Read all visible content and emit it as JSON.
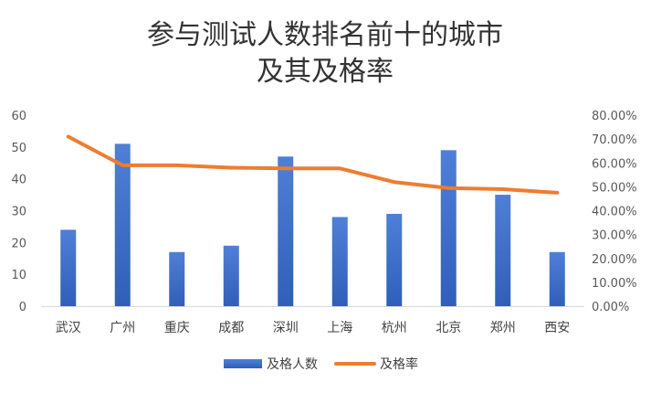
{
  "chart_data": {
    "type": "bar",
    "title_lines": [
      "参与测试人数排名前十的城市",
      "及其及格率"
    ],
    "categories": [
      "武汉",
      "广州",
      "重庆",
      "成都",
      "深圳",
      "上海",
      "杭州",
      "北京",
      "郑州",
      "西安"
    ],
    "series": [
      {
        "name": "及格人数",
        "type": "bar",
        "axis": "left",
        "color": "#4472C4",
        "values": [
          24,
          51,
          17,
          19,
          47,
          28,
          29,
          49,
          35,
          17
        ]
      },
      {
        "name": "及格率",
        "type": "line",
        "axis": "right",
        "color": "#ED7D31",
        "values": [
          0.71,
          0.59,
          0.59,
          0.58,
          0.577,
          0.577,
          0.52,
          0.495,
          0.49,
          0.475
        ]
      }
    ],
    "left_axis": {
      "min": 0,
      "max": 60,
      "step": 10,
      "tick_labels": [
        "0",
        "10",
        "20",
        "30",
        "40",
        "50",
        "60"
      ]
    },
    "right_axis": {
      "min": 0,
      "max": 0.8,
      "step": 0.1,
      "tick_labels": [
        "0.00%",
        "10.00%",
        "20.00%",
        "30.00%",
        "40.00%",
        "50.00%",
        "60.00%",
        "70.00%",
        "80.00%"
      ]
    },
    "grid": false,
    "legend_position": "bottom"
  }
}
